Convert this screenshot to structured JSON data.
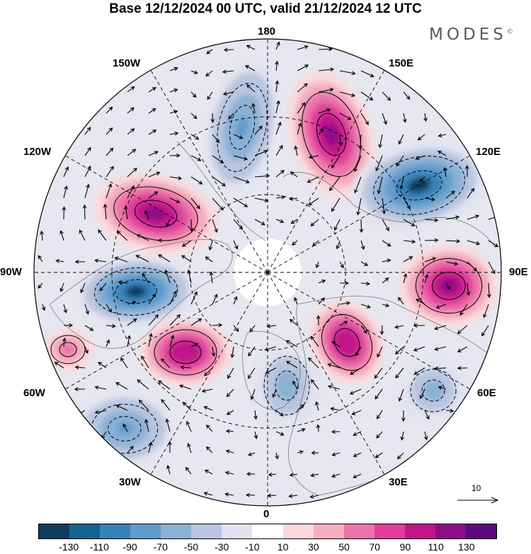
{
  "title": "Base 12/12/2024 00 UTC, valid 21/12/2024 12 UTC",
  "brand": "MODES",
  "brand_mark": "©",
  "longitude_labels": {
    "top": "180",
    "bottom": "0",
    "left": "90W",
    "right": "90E",
    "upper_left_1": "150W",
    "upper_left_2": "120W",
    "lower_left_1": "60W",
    "lower_left_2": "30W",
    "upper_right_1": "150E",
    "upper_right_2": "120E",
    "lower_right_1": "60E",
    "lower_right_2": "30E"
  },
  "reference_vector": {
    "label": "10",
    "icon": "arrow-right-icon"
  },
  "colorbar": {
    "colors": [
      "#0f3d5e",
      "#16628f",
      "#3682b9",
      "#5f9ccb",
      "#8bb1d6",
      "#b9c6e0",
      "#e2e3ef",
      "#ffffff",
      "#fadadc",
      "#f4aebf",
      "#ec74ab",
      "#df3f9b",
      "#c0168a",
      "#8c0d86",
      "#5c0a7a"
    ],
    "tick_labels": [
      "-130",
      "-110",
      "-90",
      "-70",
      "-50",
      "-30",
      "-10",
      "10",
      "30",
      "50",
      "70",
      "90",
      "110",
      "130"
    ]
  },
  "map": {
    "projection": "north-polar-stereographic",
    "field": "anomaly",
    "features": [
      {
        "name": "anomaly-positive-east-siberian",
        "sign": "positive",
        "peak": 130
      },
      {
        "name": "anomaly-negative-pacific",
        "sign": "negative",
        "peak": -80
      },
      {
        "name": "anomaly-negative-east-asia",
        "sign": "negative",
        "peak": -130
      },
      {
        "name": "anomaly-positive-central-asia",
        "sign": "positive",
        "peak": 130
      },
      {
        "name": "anomaly-positive-canada",
        "sign": "positive",
        "peak": 130
      },
      {
        "name": "anomaly-negative-hudson",
        "sign": "negative",
        "peak": -130
      },
      {
        "name": "anomaly-positive-atlantic",
        "sign": "positive",
        "peak": 110
      },
      {
        "name": "anomaly-negative-north-atlantic",
        "sign": "negative",
        "peak": -80
      },
      {
        "name": "anomaly-positive-scandinavia",
        "sign": "positive",
        "peak": 110
      },
      {
        "name": "anomaly-negative-europe",
        "sign": "negative",
        "peak": -60
      },
      {
        "name": "anomaly-negative-caspian",
        "sign": "negative",
        "peak": -60
      },
      {
        "name": "anomaly-positive-north-africa",
        "sign": "positive",
        "peak": 70
      }
    ]
  }
}
